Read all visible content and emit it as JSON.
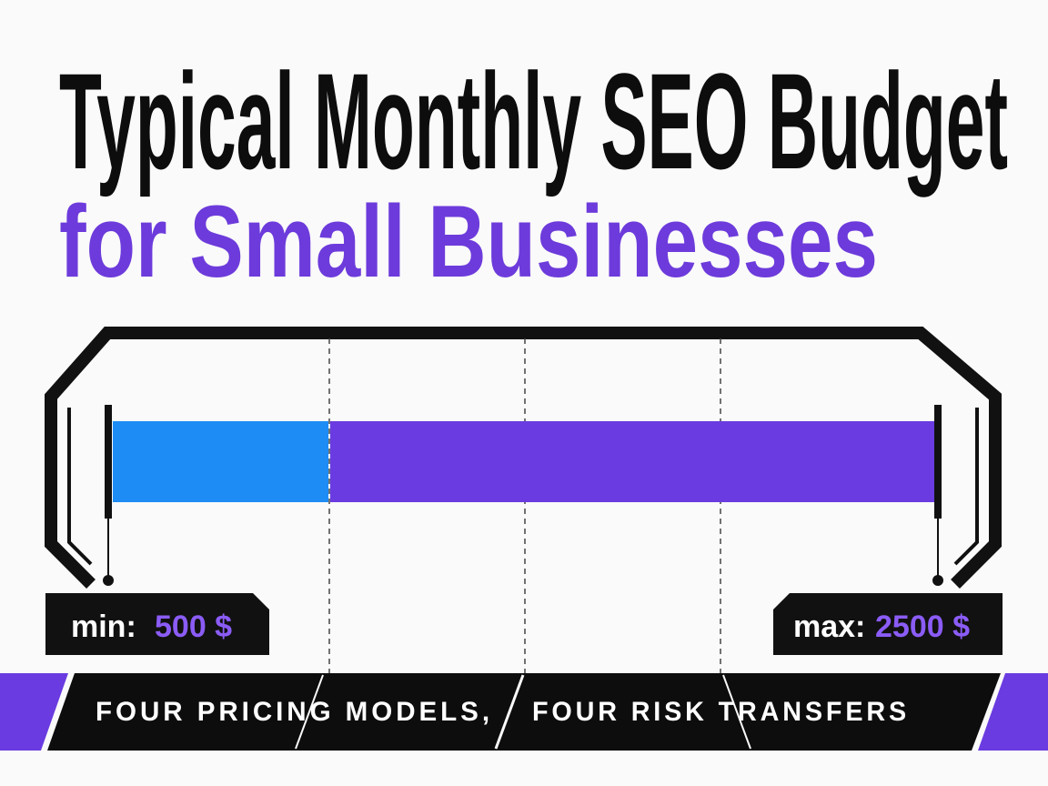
{
  "title": {
    "line1": "Typical Monthly SEO Budget",
    "line2": "for Small Businesses"
  },
  "range": {
    "min_label": "min:",
    "min_value": "500 $",
    "max_label": "max:",
    "max_value": "2500 $"
  },
  "footer": {
    "left": "FOUR PRICING MODELS,",
    "right": "FOUR RISK TRANSFERS"
  }
}
